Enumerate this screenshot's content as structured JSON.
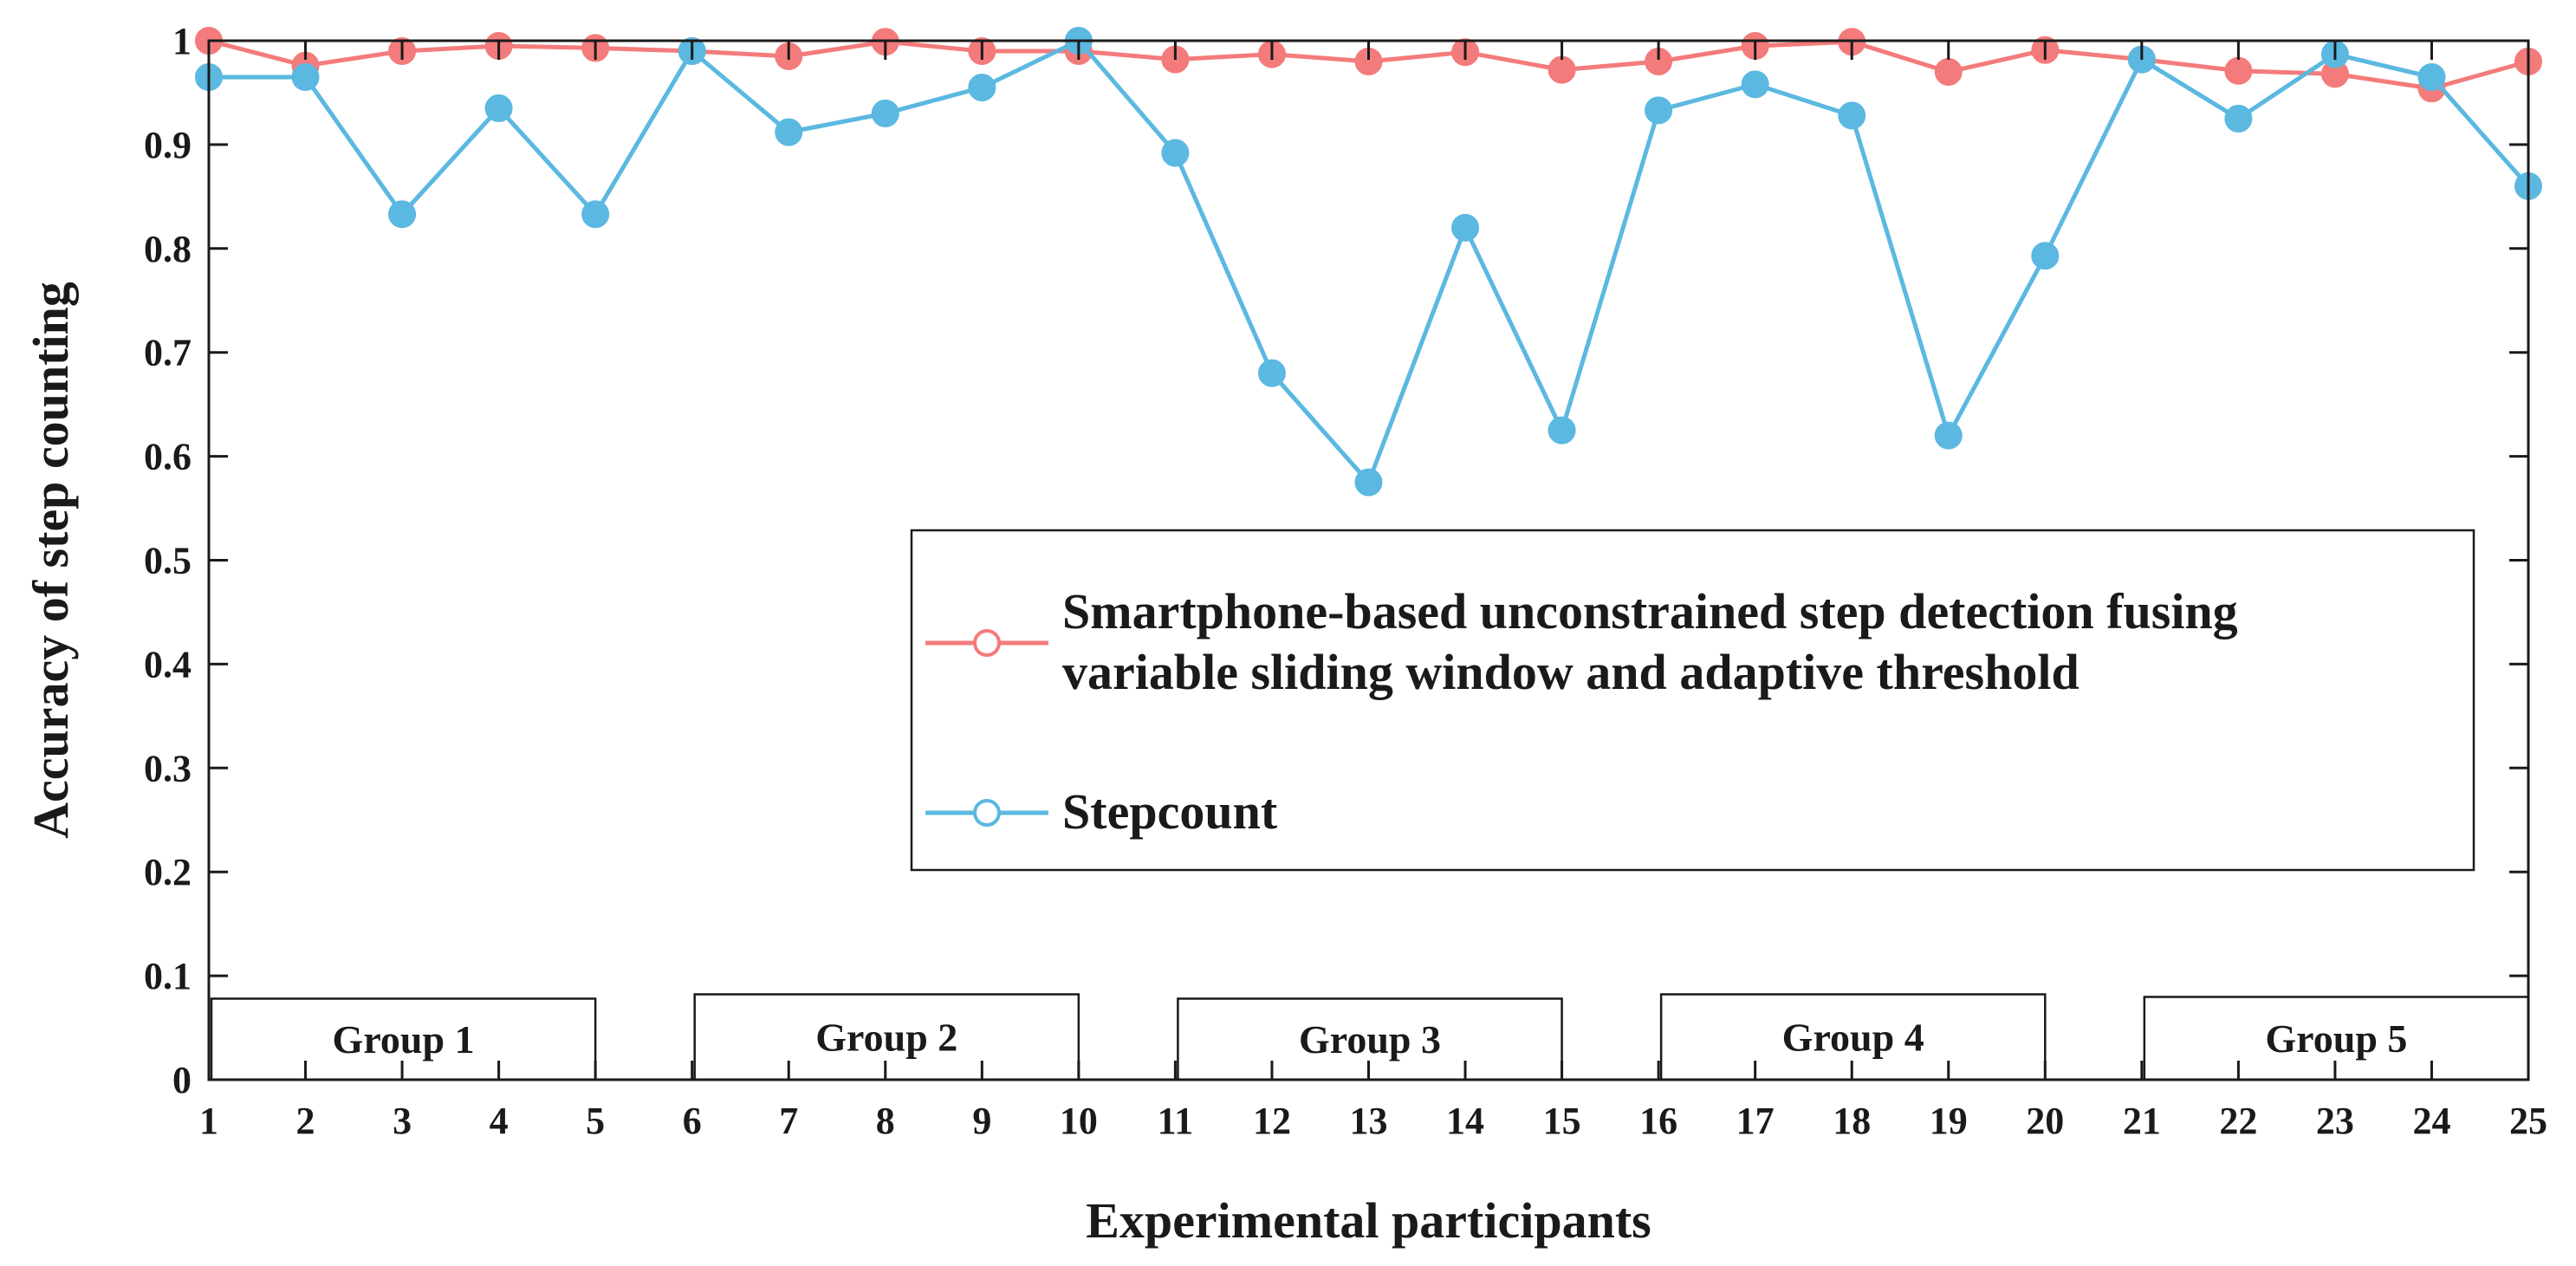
{
  "chart_data": {
    "type": "line",
    "xlabel": "Experimental participants",
    "ylabel": "Accuracy of step counting",
    "xlim": [
      1,
      25
    ],
    "ylim": [
      0,
      1
    ],
    "x_ticks": [
      "1",
      "2",
      "3",
      "4",
      "5",
      "6",
      "7",
      "8",
      "9",
      "10",
      "11",
      "12",
      "13",
      "14",
      "15",
      "16",
      "17",
      "18",
      "19",
      "20",
      "21",
      "22",
      "23",
      "24",
      "25"
    ],
    "y_ticks": [
      "0",
      "0.1",
      "0.2",
      "0.3",
      "0.4",
      "0.5",
      "0.6",
      "0.7",
      "0.8",
      "0.9",
      "1"
    ],
    "x": [
      1,
      2,
      3,
      4,
      5,
      6,
      7,
      8,
      9,
      10,
      11,
      12,
      13,
      14,
      15,
      16,
      17,
      18,
      19,
      20,
      21,
      22,
      23,
      24,
      25
    ],
    "series": [
      {
        "name": "Smartphone-based unconstrained step detection fusing variable sliding window and adaptive threshold",
        "legend_lines": [
          "Smartphone-based unconstrained step detection fusing",
          "variable sliding window and adaptive threshold"
        ],
        "color": "#f47b7b",
        "values": [
          1.0,
          0.976,
          0.99,
          0.995,
          0.993,
          0.99,
          0.985,
          0.999,
          0.99,
          0.99,
          0.982,
          0.987,
          0.98,
          0.989,
          0.972,
          0.98,
          0.995,
          0.999,
          0.97,
          0.991,
          0.982,
          0.971,
          0.968,
          0.954,
          0.98
        ]
      },
      {
        "name": "Stepcount",
        "legend_lines": [
          "Stepcount"
        ],
        "color": "#5bb8e1",
        "values": [
          0.965,
          0.965,
          0.833,
          0.935,
          0.833,
          0.99,
          0.912,
          0.93,
          0.955,
          1.0,
          0.892,
          0.68,
          0.575,
          0.82,
          0.625,
          0.933,
          0.958,
          0.928,
          0.62,
          0.793,
          0.982,
          0.925,
          0.987,
          0.965,
          0.86
        ]
      }
    ],
    "groups": [
      {
        "label": "Group 1",
        "from": 1,
        "to": 5
      },
      {
        "label": "Group 2",
        "from": 6,
        "to": 10
      },
      {
        "label": "Group 3",
        "from": 11,
        "to": 15
      },
      {
        "label": "Group 4",
        "from": 16,
        "to": 20
      },
      {
        "label": "Group 5",
        "from": 21,
        "to": 25
      }
    ],
    "legend_position": "center-right",
    "grid": false
  }
}
